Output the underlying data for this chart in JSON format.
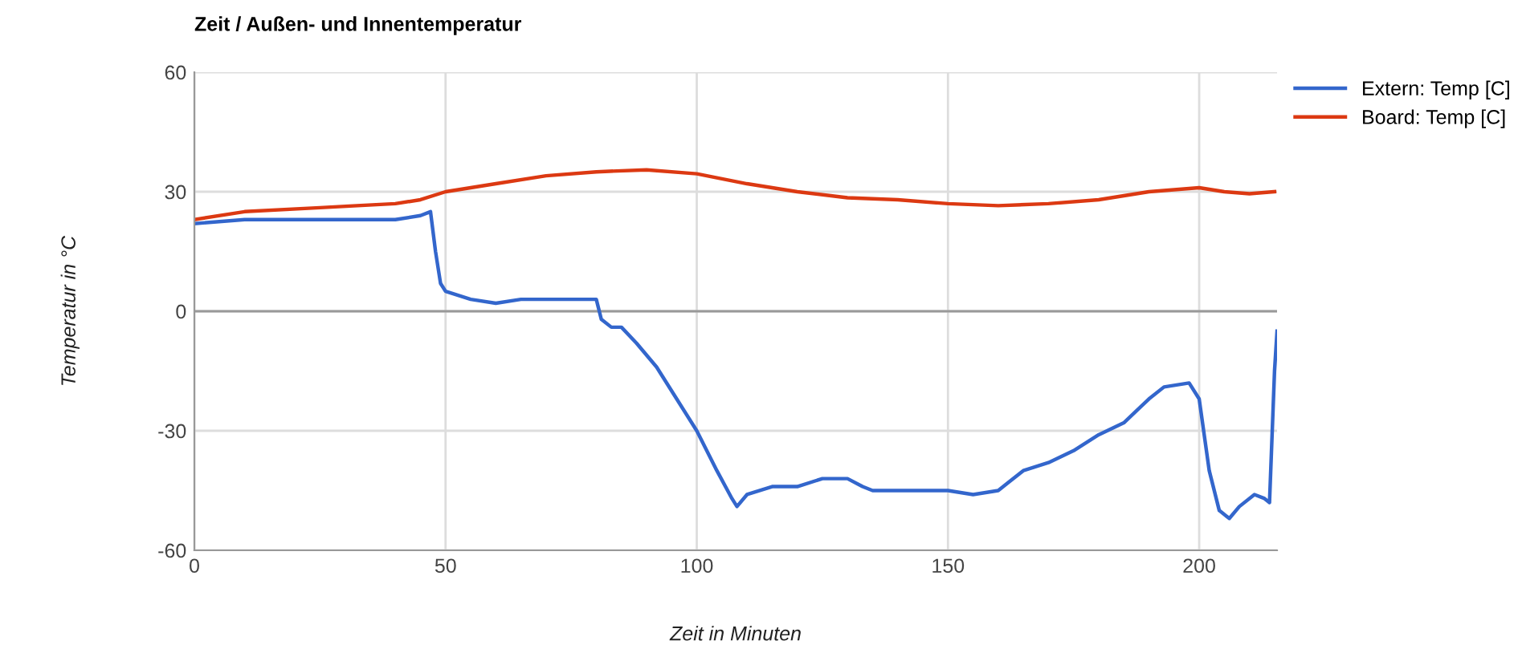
{
  "chart_data": {
    "type": "line",
    "title": "Zeit / Außen- und Innentemperatur",
    "xlabel": "Zeit in Minuten",
    "ylabel": "Temperatur in °C",
    "xlim": [
      0,
      215.5
    ],
    "xticks": [
      0,
      50,
      100,
      150,
      200
    ],
    "ylim": [
      -60,
      60
    ],
    "yticks": [
      -60,
      -30,
      0,
      30,
      60
    ],
    "grid": true,
    "legend": "top right",
    "series": [
      {
        "name": "Extern: Temp [C]",
        "color": "#3366cc",
        "x": [
          0,
          10,
          20,
          30,
          40,
          45,
          47,
          48,
          49,
          50,
          55,
          60,
          65,
          70,
          75,
          80,
          81,
          83,
          85,
          88,
          92,
          96,
          100,
          104,
          107,
          108,
          110,
          115,
          120,
          125,
          130,
          133,
          135,
          140,
          145,
          150,
          155,
          160,
          162,
          165,
          170,
          175,
          180,
          185,
          190,
          193,
          198,
          200,
          202,
          204,
          206,
          208,
          211,
          213,
          214,
          215,
          215.5
        ],
        "values": [
          22,
          23,
          23,
          23,
          23,
          24,
          25,
          15,
          7,
          5,
          3,
          2,
          3,
          3,
          3,
          3,
          -2,
          -4,
          -4,
          -8,
          -14,
          -22,
          -30,
          -40,
          -47,
          -49,
          -46,
          -44,
          -44,
          -42,
          -42,
          -44,
          -45,
          -45,
          -45,
          -45,
          -46,
          -45,
          -43,
          -40,
          -38,
          -35,
          -31,
          -28,
          -22,
          -19,
          -18,
          -22,
          -40,
          -50,
          -52,
          -49,
          -46,
          -47,
          -48,
          -15,
          -5
        ]
      },
      {
        "name": "Board: Temp [C]",
        "color": "#dc3912",
        "x": [
          0,
          10,
          25,
          40,
          45,
          50,
          60,
          70,
          80,
          90,
          100,
          110,
          120,
          130,
          140,
          150,
          160,
          170,
          180,
          190,
          200,
          205,
          210,
          215
        ],
        "values": [
          23,
          25,
          26,
          27,
          28,
          30,
          32,
          34,
          35,
          35.5,
          34.5,
          32,
          30,
          28.5,
          28,
          27,
          26.5,
          27,
          28,
          30,
          31,
          30,
          29.5,
          30
        ]
      }
    ]
  }
}
